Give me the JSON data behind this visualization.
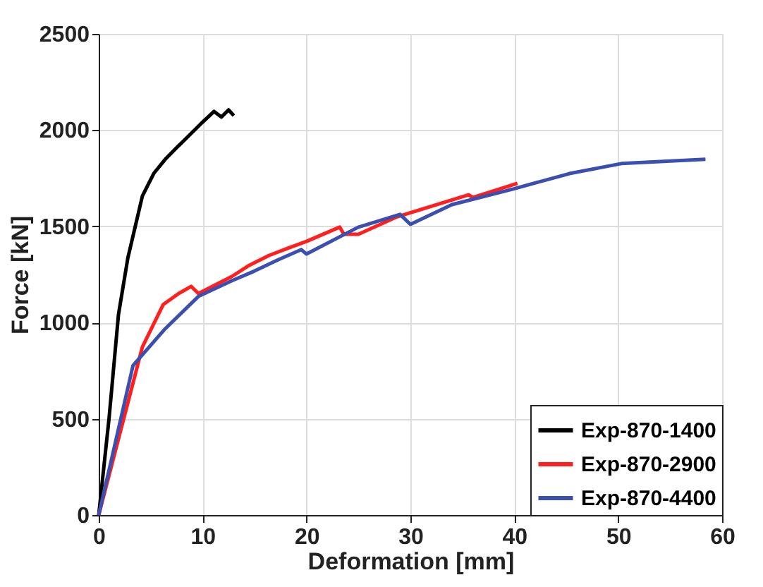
{
  "chart_data": {
    "type": "line",
    "xlabel": "Deformation [mm]",
    "ylabel": "Force [kN]",
    "xlim": [
      0,
      60
    ],
    "xticks": [
      0,
      10,
      20,
      30,
      40,
      50,
      60
    ],
    "ylim": [
      0,
      2500
    ],
    "yticks": [
      0,
      500,
      1000,
      1500,
      2000,
      2500
    ],
    "grid": true,
    "legend": "bottom right",
    "line_style": "solid",
    "marker": "none",
    "series": [
      {
        "name": "Exp-870-1400",
        "color": "#000000",
        "x": [
          0,
          1.0,
          1.9,
          2.8,
          4.2,
          5.3,
          6.4,
          7.6,
          8.7,
          9.8,
          11.1,
          11.8,
          12.5,
          13.0
        ],
        "values": [
          0,
          506,
          1041,
          1335,
          1657,
          1775,
          1848,
          1914,
          1972,
          2031,
          2097,
          2068,
          2105,
          2075
        ]
      },
      {
        "name": "Exp-870-2900",
        "color": "#ff1f1f",
        "x": [
          0,
          4.2,
          6.2,
          7.7,
          8.9,
          9.6,
          10.3,
          12.8,
          14.5,
          16.4,
          18.2,
          20,
          23.2,
          23.6,
          25,
          28.6,
          35.6,
          36,
          40.3
        ],
        "values": [
          0,
          873,
          1093,
          1151,
          1188,
          1151,
          1170,
          1239,
          1298,
          1349,
          1386,
          1422,
          1496,
          1459,
          1459,
          1547,
          1664,
          1650,
          1723
        ]
      },
      {
        "name": "Exp-870-4400",
        "color": "#3a4fb0",
        "x": [
          0,
          3.3,
          6.4,
          9.6,
          12.8,
          15,
          17.3,
          19.5,
          20,
          25,
          29,
          30,
          34,
          39.9,
          45.3,
          50.3,
          58.4
        ],
        "values": [
          0,
          777,
          968,
          1136,
          1217,
          1268,
          1327,
          1379,
          1356,
          1496,
          1562,
          1510,
          1613,
          1694,
          1774,
          1826,
          1848
        ]
      }
    ]
  }
}
